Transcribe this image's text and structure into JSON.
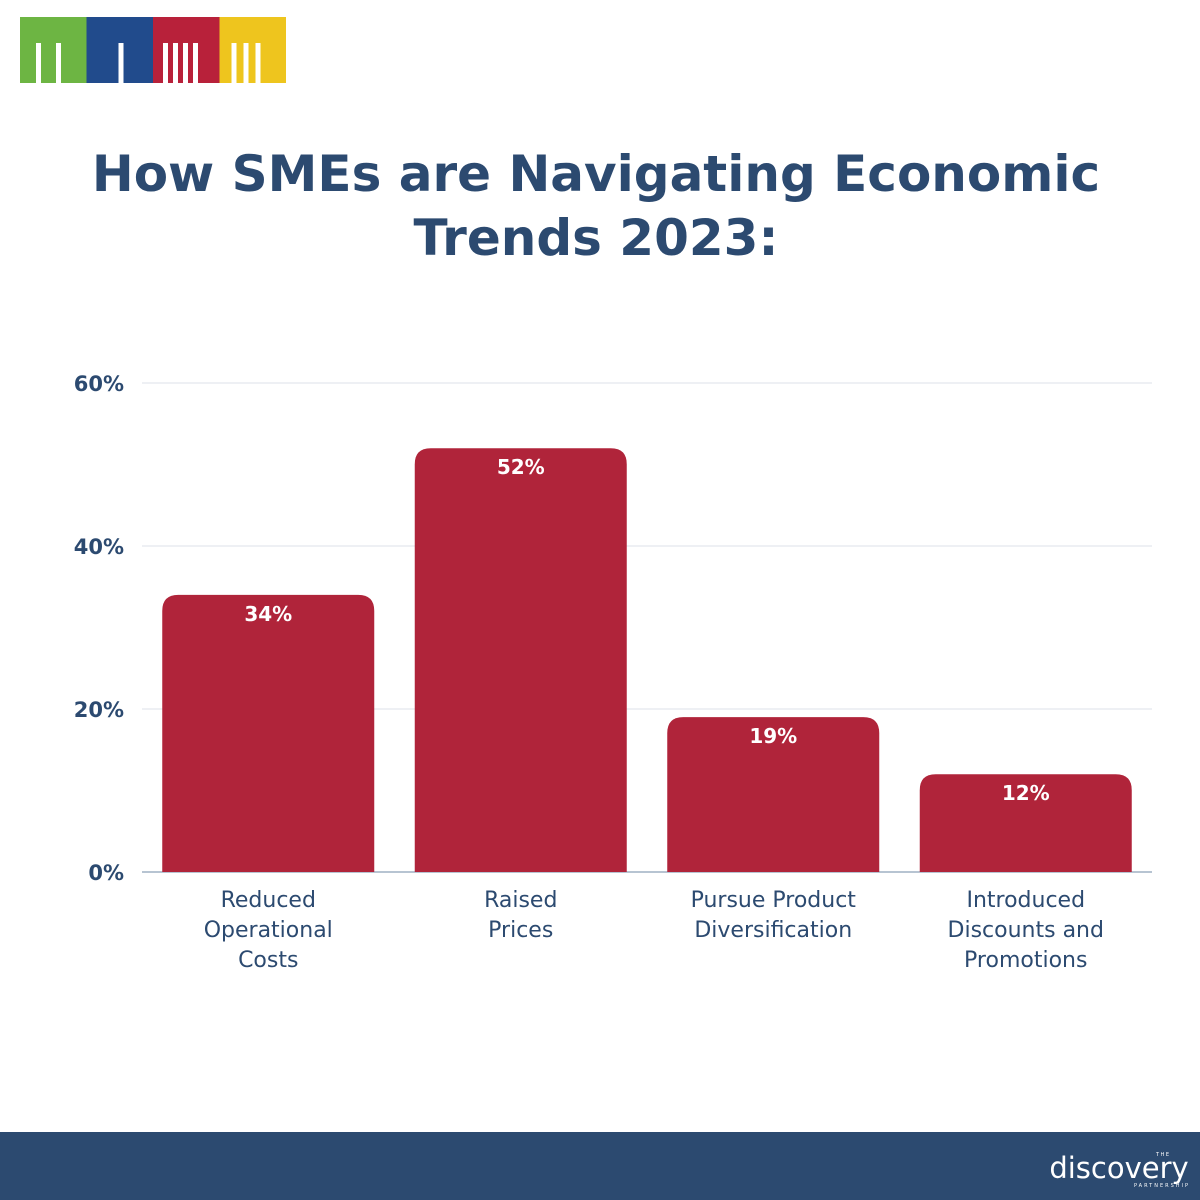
{
  "header": {
    "title_line1": "How SMEs are Navigating Economic",
    "title_line2": "Trends 2023:"
  },
  "logo": {
    "icon": "four-colored-column-blocks-logo",
    "colors": [
      "#6db543",
      "#214b8c",
      "#b8213a",
      "#eec51e"
    ]
  },
  "footer": {
    "brand_small": "THE",
    "brand": "discovery",
    "brand_sub": "PARTNERSHIP",
    "background": "#2c4a70"
  },
  "chart_data": {
    "type": "bar",
    "categories": [
      [
        "Reduced",
        "Operational",
        "Costs"
      ],
      [
        "Raised",
        "Prices"
      ],
      [
        "Pursue Product",
        "Diversification"
      ],
      [
        "Introduced",
        "Discounts and",
        "Promotions"
      ]
    ],
    "values": [
      34,
      52,
      19,
      12
    ],
    "value_labels": [
      "34%",
      "52%",
      "19%",
      "12%"
    ],
    "ylim": [
      0,
      60
    ],
    "yticks": [
      0,
      20,
      40,
      60
    ],
    "ytick_labels": [
      "0%",
      "20%",
      "40%",
      "60%"
    ],
    "grid": true,
    "bar_color": "#b0243a",
    "label_color": "#2c4a70"
  }
}
